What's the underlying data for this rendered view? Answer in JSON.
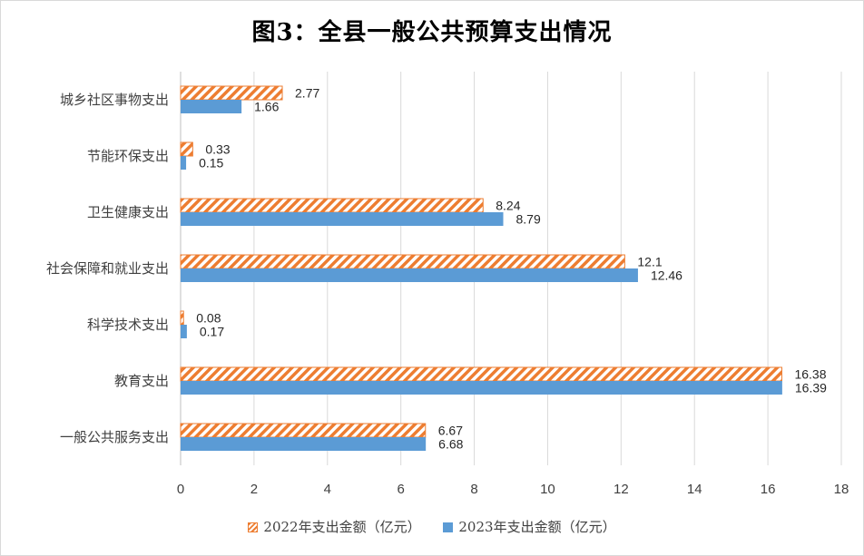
{
  "chart_data": {
    "type": "bar",
    "orientation": "horizontal",
    "title": "图3：全县一般公共预算支出情况",
    "categories": [
      "一般公共服务支出",
      "教育支出",
      "科学技术支出",
      "社会保障和就业支出",
      "卫生健康支出",
      "节能环保支出",
      "城乡社区事物支出"
    ],
    "series": [
      {
        "name": "2022年支出金额（亿元）",
        "values": [
          6.67,
          16.38,
          0.08,
          12.1,
          8.24,
          0.33,
          2.77
        ],
        "labels": [
          "6.67",
          "16.38",
          "0.08",
          "12.1",
          "8.24",
          "0.33",
          "2.77"
        ],
        "color": "#ed7d31",
        "pattern": "diagonal-stripes"
      },
      {
        "name": "2023年支出金额（亿元）",
        "values": [
          6.68,
          16.39,
          0.17,
          12.46,
          8.79,
          0.15,
          1.66
        ],
        "labels": [
          "6.68",
          "16.39",
          "0.17",
          "12.46",
          "8.79",
          "0.15",
          "1.66"
        ],
        "color": "#5b9bd5",
        "pattern": "solid"
      }
    ],
    "xlim": [
      0,
      18
    ],
    "x_ticks": [
      "0",
      "2",
      "4",
      "6",
      "8",
      "10",
      "12",
      "14",
      "16",
      "18"
    ],
    "xlabel": "",
    "ylabel": "",
    "grid": "vertical",
    "legend_position": "bottom"
  }
}
